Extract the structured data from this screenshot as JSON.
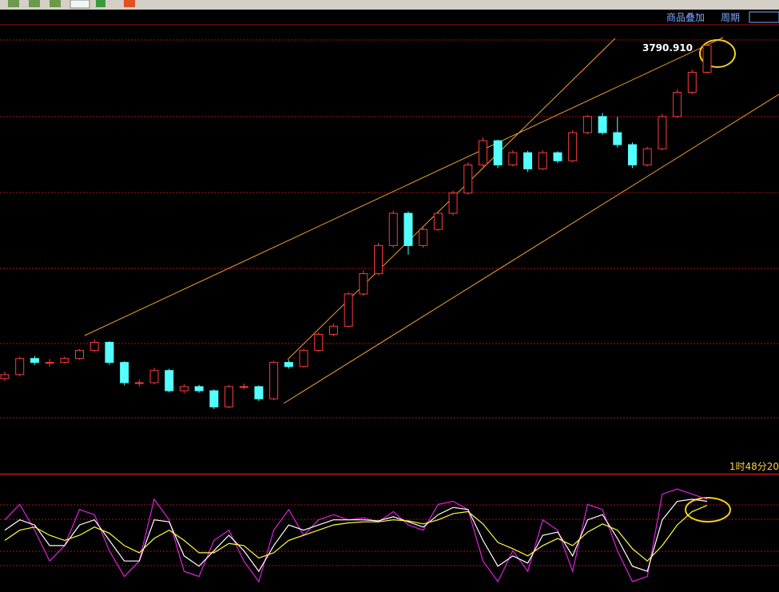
{
  "status": {
    "overlay": "商品叠加",
    "period": "周期",
    "time": "1时48分20"
  },
  "chart_data": [
    {
      "type": "candlestick",
      "annotation": "3790.910",
      "up_color": "#ff3c3c",
      "down_color": "#54ffff",
      "candles": [
        [
          2090,
          2125,
          2078,
          2110
        ],
        [
          2110,
          2200,
          2102,
          2192
        ],
        [
          2192,
          2205,
          2160,
          2172
        ],
        [
          2172,
          2190,
          2150,
          2172
        ],
        [
          2172,
          2201,
          2165,
          2192
        ],
        [
          2192,
          2240,
          2185,
          2233
        ],
        [
          2233,
          2290,
          2225,
          2274
        ],
        [
          2274,
          2280,
          2160,
          2172
        ],
        [
          2172,
          2178,
          2055,
          2069
        ],
        [
          2069,
          2085,
          2050,
          2069
        ],
        [
          2069,
          2145,
          2060,
          2131
        ],
        [
          2131,
          2140,
          2020,
          2028
        ],
        [
          2028,
          2060,
          2015,
          2049
        ],
        [
          2049,
          2058,
          2018,
          2028
        ],
        [
          2028,
          2035,
          1935,
          1946
        ],
        [
          1946,
          2058,
          1940,
          2049
        ],
        [
          2049,
          2065,
          2035,
          2049
        ],
        [
          2049,
          2055,
          1975,
          1987
        ],
        [
          1987,
          2180,
          1980,
          2172
        ],
        [
          2172,
          2185,
          2140,
          2151
        ],
        [
          2151,
          2242,
          2145,
          2233
        ],
        [
          2233,
          2325,
          2225,
          2315
        ],
        [
          2315,
          2370,
          2305,
          2356
        ],
        [
          2356,
          2530,
          2350,
          2520
        ],
        [
          2520,
          2640,
          2510,
          2623
        ],
        [
          2623,
          2780,
          2615,
          2766
        ],
        [
          2766,
          2945,
          2755,
          2930
        ],
        [
          2930,
          2940,
          2720,
          2766
        ],
        [
          2766,
          2860,
          2755,
          2848
        ],
        [
          2848,
          2942,
          2840,
          2930
        ],
        [
          2930,
          3045,
          2920,
          3033
        ],
        [
          3033,
          3190,
          3025,
          3176
        ],
        [
          3176,
          3315,
          3165,
          3299
        ],
        [
          3299,
          3305,
          3160,
          3176
        ],
        [
          3176,
          3250,
          3168,
          3238
        ],
        [
          3238,
          3248,
          3140,
          3156
        ],
        [
          3156,
          3250,
          3150,
          3238
        ],
        [
          3238,
          3245,
          3185,
          3197
        ],
        [
          3197,
          3352,
          3190,
          3340
        ],
        [
          3340,
          3430,
          3332,
          3422
        ],
        [
          3422,
          3440,
          3330,
          3340
        ],
        [
          3340,
          3420,
          3265,
          3279
        ],
        [
          3279,
          3290,
          3160,
          3176
        ],
        [
          3176,
          3268,
          3168,
          3258
        ],
        [
          3258,
          3435,
          3250,
          3422
        ],
        [
          3422,
          3560,
          3415,
          3545
        ],
        [
          3545,
          3660,
          3535,
          3647
        ],
        [
          3647,
          3790.91,
          3640,
          3783
        ]
      ]
    },
    {
      "type": "line",
      "series": [
        {
          "color": "#e020e0",
          "values": [
            70,
            85,
            60,
            30,
            45,
            80,
            75,
            40,
            15,
            30,
            90,
            70,
            20,
            15,
            50,
            60,
            30,
            10,
            60,
            80,
            55,
            70,
            75,
            70,
            72,
            68,
            78,
            65,
            60,
            85,
            88,
            80,
            30,
            10,
            40,
            20,
            70,
            60,
            20,
            85,
            80,
            40,
            10,
            15,
            95,
            100,
            95,
            90
          ]
        },
        {
          "color": "#ffffff",
          "values": [
            60,
            70,
            65,
            45,
            45,
            65,
            70,
            50,
            30,
            30,
            70,
            68,
            35,
            25,
            40,
            55,
            40,
            20,
            45,
            65,
            60,
            65,
            70,
            70,
            70,
            69,
            73,
            68,
            63,
            75,
            82,
            80,
            50,
            25,
            35,
            28,
            55,
            58,
            35,
            70,
            75,
            52,
            25,
            20,
            70,
            88,
            90,
            88
          ]
        },
        {
          "color": "#ffff40",
          "values": [
            50,
            60,
            63,
            55,
            50,
            55,
            63,
            57,
            45,
            38,
            52,
            60,
            50,
            38,
            38,
            47,
            45,
            33,
            38,
            50,
            55,
            60,
            65,
            67,
            68,
            68,
            70,
            69,
            66,
            70,
            76,
            78,
            66,
            48,
            42,
            35,
            45,
            52,
            45,
            58,
            66,
            60,
            42,
            30,
            45,
            65,
            78,
            84
          ]
        }
      ]
    }
  ]
}
